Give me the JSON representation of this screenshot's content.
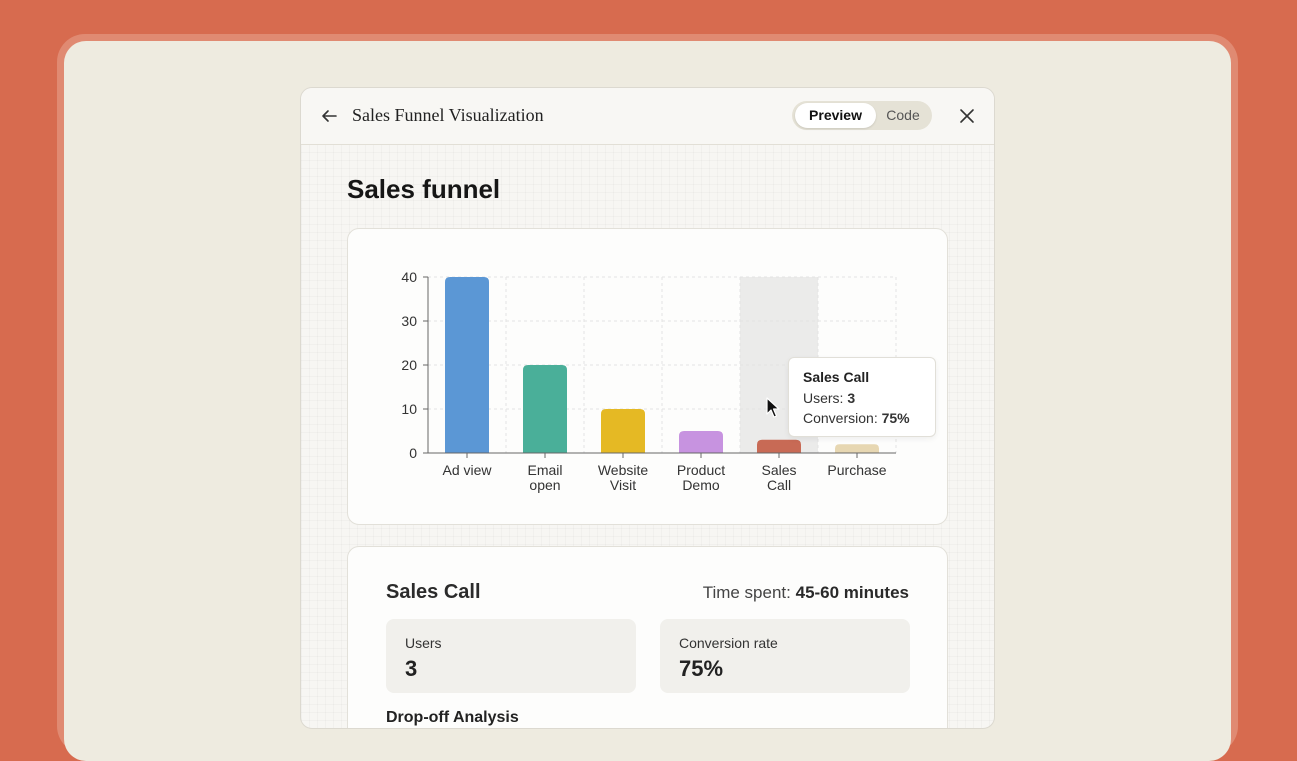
{
  "header": {
    "title": "Sales Funnel Visualization",
    "tabs": [
      {
        "label": "Preview"
      },
      {
        "label": "Code"
      }
    ],
    "active_tab": "Preview"
  },
  "page": {
    "title": "Sales funnel"
  },
  "chart_data": {
    "type": "bar",
    "categories": [
      "Ad view",
      "Email open",
      "Website Visit",
      "Product Demo",
      "Sales Call",
      "Purchase"
    ],
    "values": [
      40,
      20,
      10,
      5,
      3,
      2
    ],
    "colors": [
      "#5b97d5",
      "#4aaf99",
      "#e5b924",
      "#c793e0",
      "#c86a55",
      "#e7d7b2"
    ],
    "ylim": [
      0,
      40
    ],
    "yticks": [
      0,
      10,
      20,
      30,
      40
    ],
    "grid": true,
    "highlighted": "Sales Call"
  },
  "tooltip": {
    "title": "Sales Call",
    "users_label": "Users:",
    "users_value": "3",
    "conversion_label": "Conversion:",
    "conversion_value": "75%"
  },
  "detail": {
    "title": "Sales Call",
    "time_label": "Time spent:",
    "time_value": "45-60 minutes",
    "users_label": "Users",
    "users_value": "3",
    "conversion_label": "Conversion rate",
    "conversion_value": "75%",
    "next_section": "Drop-off Analysis"
  },
  "icons": {
    "back": "arrow-left-icon",
    "close": "close-icon",
    "cursor": "mouse-pointer-icon"
  }
}
